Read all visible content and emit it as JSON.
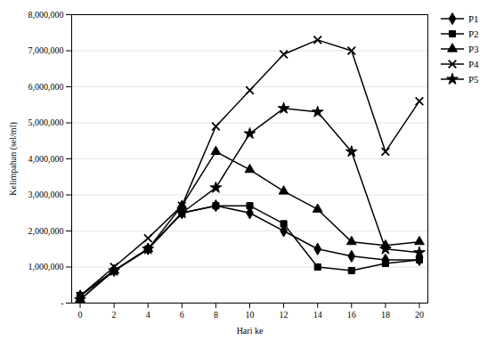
{
  "chart_data": {
    "type": "line",
    "x": [
      0,
      2,
      4,
      6,
      8,
      10,
      12,
      14,
      16,
      18,
      20
    ],
    "series": [
      {
        "name": "P1",
        "color": "#000000",
        "marker": "diamond",
        "values": [
          200000,
          900000,
          1500000,
          2500000,
          2700000,
          2500000,
          2000000,
          1500000,
          1300000,
          1200000,
          1200000
        ]
      },
      {
        "name": "P2",
        "color": "#000000",
        "marker": "square",
        "values": [
          200000,
          900000,
          1500000,
          2500000,
          2700000,
          2700000,
          2200000,
          1000000,
          900000,
          1100000,
          1200000
        ]
      },
      {
        "name": "P3",
        "color": "#000000",
        "marker": "triangle",
        "values": [
          100000,
          900000,
          1500000,
          2700000,
          4200000,
          3700000,
          3100000,
          2600000,
          1700000,
          1600000,
          1700000
        ]
      },
      {
        "name": "P4",
        "color": "#000000",
        "marker": "times",
        "values": [
          200000,
          1000000,
          1800000,
          2700000,
          4900000,
          5900000,
          6900000,
          7300000,
          7000000,
          4200000,
          5600000
        ]
      },
      {
        "name": "P5",
        "color": "#000000",
        "marker": "star",
        "values": [
          100000,
          900000,
          1500000,
          2500000,
          3200000,
          4700000,
          5400000,
          5300000,
          4200000,
          1500000,
          1400000
        ]
      }
    ],
    "xlabel": "Hari ke",
    "ylabel": "Kelimpahan (sel/ml)",
    "xlim": [
      -0.5,
      20.5
    ],
    "xticks": [
      0,
      2,
      4,
      6,
      8,
      10,
      12,
      14,
      16,
      18,
      20
    ],
    "ylim": [
      0,
      8000000
    ],
    "yticks": [
      {
        "value": 0,
        "label": "-"
      },
      {
        "value": 1000000,
        "label": "1,000,000"
      },
      {
        "value": 2000000,
        "label": "2,000,000"
      },
      {
        "value": 3000000,
        "label": "3,000,000"
      },
      {
        "value": 4000000,
        "label": "4,000,000"
      },
      {
        "value": 5000000,
        "label": "5,000,000"
      },
      {
        "value": 6000000,
        "label": "6,000,000"
      },
      {
        "value": 7000000,
        "label": "7,000,000"
      },
      {
        "value": 8000000,
        "label": "8,000,000"
      }
    ],
    "grid": true,
    "legend": "upper right"
  }
}
